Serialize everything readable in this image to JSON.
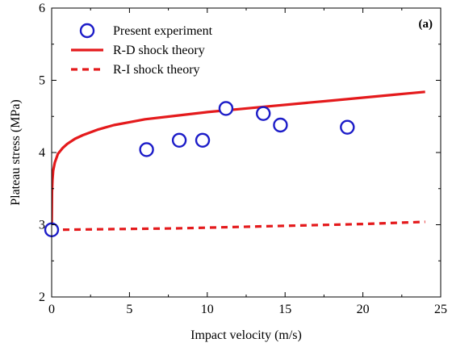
{
  "chart_data": {
    "type": "scatter",
    "panel_label": "(a)",
    "xlabel": "Impact velocity (m/s)",
    "ylabel": "Plateau stress (MPa)",
    "xlim": [
      0,
      25
    ],
    "ylim": [
      2,
      6
    ],
    "x_ticks": [
      0,
      5,
      10,
      15,
      20,
      25
    ],
    "y_ticks": [
      2,
      3,
      4,
      5,
      6
    ],
    "grid": false,
    "legend_position": "top-left",
    "series": [
      {
        "name": "Present experiment",
        "kind": "marker",
        "marker": "open-circle",
        "color": "#1c1cc8",
        "x": [
          0,
          6.1,
          8.2,
          9.7,
          11.2,
          13.6,
          14.7,
          19.0
        ],
        "y": [
          2.93,
          4.04,
          4.17,
          4.17,
          4.61,
          4.54,
          4.38,
          4.35
        ]
      },
      {
        "name": "R-D shock theory",
        "kind": "line",
        "style": "solid",
        "color": "#e41a1c",
        "x": [
          0,
          0.02,
          0.05,
          0.1,
          0.2,
          0.4,
          0.7,
          1,
          1.5,
          2,
          3,
          4,
          5,
          6,
          8,
          10,
          12,
          14,
          16,
          18,
          20,
          22,
          24
        ],
        "y": [
          2.92,
          3.45,
          3.62,
          3.75,
          3.86,
          3.98,
          4.06,
          4.12,
          4.19,
          4.24,
          4.32,
          4.38,
          4.42,
          4.46,
          4.51,
          4.56,
          4.6,
          4.64,
          4.68,
          4.72,
          4.76,
          4.8,
          4.84
        ]
      },
      {
        "name": "R-I shock theory",
        "kind": "line",
        "style": "dashed",
        "color": "#e41a1c",
        "x": [
          0,
          4,
          8,
          12,
          16,
          20,
          24
        ],
        "y": [
          2.93,
          2.94,
          2.95,
          2.97,
          2.99,
          3.01,
          3.04
        ]
      }
    ]
  }
}
